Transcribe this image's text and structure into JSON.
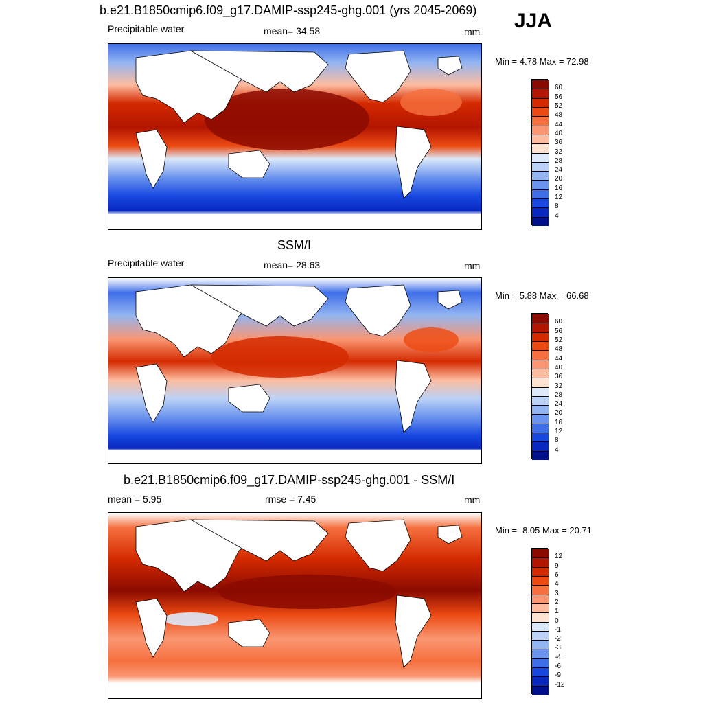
{
  "season": "JJA",
  "panels": [
    {
      "title": "b.e21.B1850cmip6.f09_g17.DAMIP-ssp245-ghg.001 (yrs 2045-2069)",
      "left_label": "Precipitable water",
      "center_label": "mean=  34.58",
      "units": "mm",
      "minmax": "Min =   4.78 Max =  72.98",
      "colorbar_labels": [
        "60",
        "56",
        "52",
        "48",
        "44",
        "40",
        "36",
        "32",
        "28",
        "24",
        "20",
        "16",
        "12",
        "8",
        "4"
      ],
      "colorbar_colors": [
        "#8b0a00",
        "#b21500",
        "#d42a00",
        "#ec4a12",
        "#f6703f",
        "#fa9672",
        "#fdbca0",
        "#fde2d2",
        "#dce9fa",
        "#bcd2f6",
        "#93b5f2",
        "#6b94ee",
        "#3f6fe8",
        "#1848e0",
        "#0828c0",
        "#00108a"
      ]
    },
    {
      "title": "SSM/I",
      "left_label": "Precipitable water",
      "center_label": "mean=  28.63",
      "units": "mm",
      "minmax": "Min =   5.88 Max =  66.68",
      "colorbar_labels": [
        "60",
        "56",
        "52",
        "48",
        "44",
        "40",
        "36",
        "32",
        "28",
        "24",
        "20",
        "16",
        "12",
        "8",
        "4"
      ],
      "colorbar_colors": [
        "#8b0a00",
        "#b21500",
        "#d42a00",
        "#ec4a12",
        "#f6703f",
        "#fa9672",
        "#fdbca0",
        "#fde2d2",
        "#dce9fa",
        "#bcd2f6",
        "#93b5f2",
        "#6b94ee",
        "#3f6fe8",
        "#1848e0",
        "#0828c0",
        "#00108a"
      ]
    },
    {
      "title": "b.e21.B1850cmip6.f09_g17.DAMIP-ssp245-ghg.001 - SSM/I",
      "left_label": "mean =   5.95",
      "center_label": "rmse =   7.45",
      "units": "mm",
      "minmax": "Min =  -8.05 Max =  20.71",
      "colorbar_labels": [
        "12",
        "9",
        "6",
        "4",
        "3",
        "2",
        "1",
        "0",
        "-1",
        "-2",
        "-3",
        "-4",
        "-6",
        "-9",
        "-12"
      ],
      "colorbar_colors": [
        "#8b0a00",
        "#b21500",
        "#d42a00",
        "#ec4a12",
        "#f6703f",
        "#fa9672",
        "#fdbca0",
        "#fde2d2",
        "#dce9fa",
        "#bcd2f6",
        "#93b5f2",
        "#6b94ee",
        "#3f6fe8",
        "#1848e0",
        "#0828c0",
        "#00108a"
      ]
    }
  ]
}
